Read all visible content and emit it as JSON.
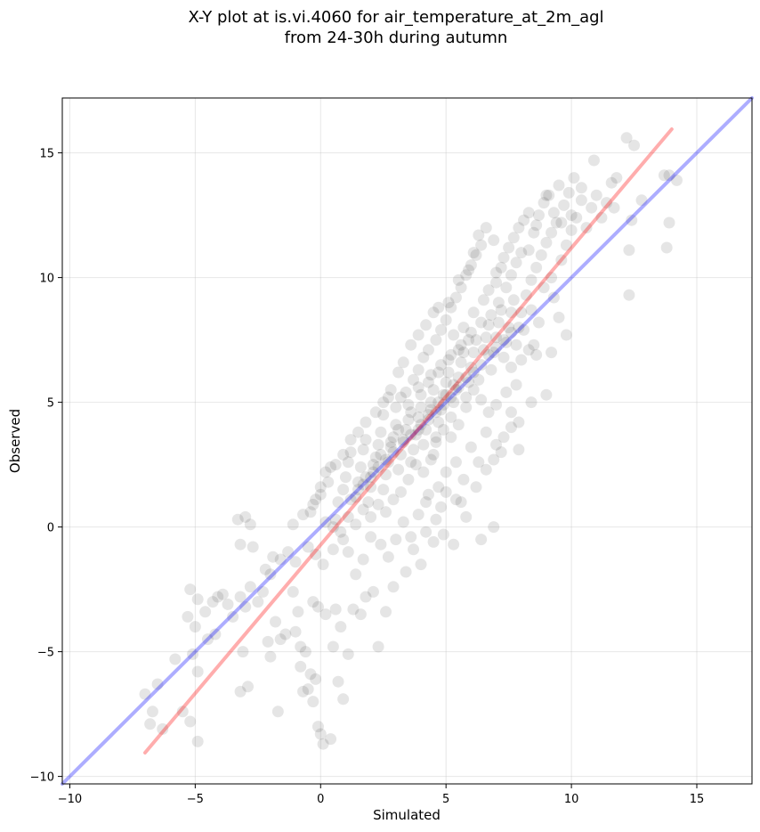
{
  "chart_data": {
    "type": "scatter",
    "title": "X-Y plot at is.vi.4060 for air_temperature_at_2m_agl",
    "subtitle": "from 24-30h during autumn",
    "xlabel": "Simulated",
    "ylabel": "Observed",
    "xlim": [
      -10.3,
      17.2
    ],
    "ylim": [
      -10.3,
      17.2
    ],
    "xticks": [
      -10,
      -5,
      0,
      5,
      10,
      15
    ],
    "yticks": [
      -10,
      -5,
      0,
      5,
      10,
      15
    ],
    "xtick_labels": [
      "−10",
      "−5",
      "0",
      "5",
      "10",
      "15"
    ],
    "ytick_labels": [
      "−10",
      "−5",
      "0",
      "5",
      "10",
      "15"
    ],
    "grid": true,
    "point_color": "#000000",
    "point_opacity": 0.1,
    "lines": [
      {
        "color": "#0000ff",
        "opacity": 0.32,
        "x": [
          -10.3,
          17.2
        ],
        "y": [
          -10.3,
          17.2
        ]
      },
      {
        "color": "#ff0000",
        "opacity": 0.32,
        "x": [
          -7.0,
          14.0
        ],
        "y": [
          -9.05,
          15.95
        ]
      }
    ],
    "points": [
      [
        -7.0,
        -6.7
      ],
      [
        -6.8,
        -7.9
      ],
      [
        -6.5,
        -6.3
      ],
      [
        -6.7,
        -7.4
      ],
      [
        -6.3,
        -8.1
      ],
      [
        -5.5,
        -7.4
      ],
      [
        -5.2,
        -7.8
      ],
      [
        -4.9,
        -8.6
      ],
      [
        -5.8,
        -5.3
      ],
      [
        -5.1,
        -5.1
      ],
      [
        -4.9,
        -5.8
      ],
      [
        -5.0,
        -4.0
      ],
      [
        -4.5,
        -4.5
      ],
      [
        -4.2,
        -4.3
      ],
      [
        -5.3,
        -3.6
      ],
      [
        -4.9,
        -2.9
      ],
      [
        -5.2,
        -2.5
      ],
      [
        -4.6,
        -3.4
      ],
      [
        -4.3,
        -3.0
      ],
      [
        -4.1,
        -2.8
      ],
      [
        -3.9,
        -2.7
      ],
      [
        -3.7,
        -3.1
      ],
      [
        -3.5,
        -3.6
      ],
      [
        -3.2,
        -2.8
      ],
      [
        -3.0,
        -3.2
      ],
      [
        -2.8,
        -2.4
      ],
      [
        -2.5,
        -3.0
      ],
      [
        -2.3,
        -2.6
      ],
      [
        -2.2,
        -1.7
      ],
      [
        -2.0,
        -1.9
      ],
      [
        -1.6,
        -1.3
      ],
      [
        -1.3,
        -1.0
      ],
      [
        -3.2,
        -6.6
      ],
      [
        -2.9,
        -6.4
      ],
      [
        -3.1,
        -5.0
      ],
      [
        -2.1,
        -4.6
      ],
      [
        -2.0,
        -5.2
      ],
      [
        -1.6,
        -4.5
      ],
      [
        -1.4,
        -4.3
      ],
      [
        -1.7,
        -7.4
      ],
      [
        -1.0,
        -4.2
      ],
      [
        -0.8,
        -4.8
      ],
      [
        -0.6,
        -5.0
      ],
      [
        -0.5,
        -6.5
      ],
      [
        -0.7,
        -6.6
      ],
      [
        -0.3,
        -7.0
      ],
      [
        -0.2,
        -6.1
      ],
      [
        -0.1,
        -8.0
      ],
      [
        0.1,
        -8.7
      ],
      [
        0.4,
        -8.5
      ],
      [
        0.0,
        -8.3
      ],
      [
        -0.8,
        -5.6
      ],
      [
        -0.4,
        -5.9
      ],
      [
        -0.9,
        -3.4
      ],
      [
        -1.8,
        -3.8
      ],
      [
        -1.1,
        -2.6
      ],
      [
        -0.3,
        -3.0
      ],
      [
        -0.1,
        -3.2
      ],
      [
        0.2,
        -3.5
      ],
      [
        0.6,
        -3.3
      ],
      [
        0.8,
        -4.0
      ],
      [
        0.5,
        -4.8
      ],
      [
        0.7,
        -6.2
      ],
      [
        0.9,
        -6.9
      ],
      [
        1.1,
        -5.1
      ],
      [
        1.3,
        -3.3
      ],
      [
        1.6,
        -3.5
      ],
      [
        1.8,
        -2.8
      ],
      [
        2.1,
        -2.6
      ],
      [
        2.3,
        -4.8
      ],
      [
        2.6,
        -3.4
      ],
      [
        2.9,
        -2.4
      ],
      [
        -3.3,
        0.3
      ],
      [
        -3.0,
        0.4
      ],
      [
        -2.8,
        0.1
      ],
      [
        -3.2,
        -0.7
      ],
      [
        -2.7,
        -0.8
      ],
      [
        -1.9,
        -1.2
      ],
      [
        -1.1,
        0.1
      ],
      [
        -1.0,
        -1.4
      ],
      [
        -0.5,
        -0.8
      ],
      [
        -0.2,
        -1.1
      ],
      [
        0.1,
        -1.5
      ],
      [
        0.5,
        -0.9
      ],
      [
        0.9,
        -0.5
      ],
      [
        1.1,
        -1.0
      ],
      [
        1.4,
        -1.9
      ],
      [
        1.7,
        -1.3
      ],
      [
        2.0,
        -0.4
      ],
      [
        2.4,
        -0.7
      ],
      [
        2.7,
        -1.2
      ],
      [
        3.0,
        -0.5
      ],
      [
        3.4,
        -1.8
      ],
      [
        3.7,
        -0.9
      ],
      [
        4.0,
        -1.5
      ],
      [
        4.2,
        -0.2
      ],
      [
        4.5,
        -0.6
      ],
      [
        4.9,
        -0.3
      ],
      [
        5.3,
        -0.7
      ],
      [
        6.4,
        -0.5
      ],
      [
        6.9,
        0.0
      ],
      [
        5.8,
        0.4
      ],
      [
        5.4,
        1.1
      ],
      [
        4.8,
        0.8
      ],
      [
        -0.7,
        0.5
      ],
      [
        -0.4,
        0.6
      ],
      [
        -0.2,
        1.1
      ],
      [
        0.0,
        1.6
      ],
      [
        0.2,
        2.2
      ],
      [
        0.4,
        2.4
      ],
      [
        0.2,
        0.2
      ],
      [
        0.6,
        0.3
      ],
      [
        0.7,
        1.0
      ],
      [
        0.9,
        1.5
      ],
      [
        1.0,
        2.0
      ],
      [
        1.1,
        2.6
      ],
      [
        1.2,
        3.0
      ],
      [
        1.4,
        1.2
      ],
      [
        1.5,
        1.8
      ],
      [
        1.6,
        2.4
      ],
      [
        1.7,
        3.1
      ],
      [
        1.8,
        3.5
      ],
      [
        1.9,
        1.0
      ],
      [
        2.0,
        1.6
      ],
      [
        2.1,
        2.2
      ],
      [
        2.2,
        2.8
      ],
      [
        2.3,
        3.3
      ],
      [
        2.4,
        3.8
      ],
      [
        2.5,
        1.5
      ],
      [
        2.6,
        2.1
      ],
      [
        2.7,
        2.6
      ],
      [
        2.8,
        3.2
      ],
      [
        2.9,
        3.6
      ],
      [
        3.0,
        4.1
      ],
      [
        3.1,
        2.3
      ],
      [
        3.2,
        2.9
      ],
      [
        3.3,
        3.4
      ],
      [
        3.4,
        3.9
      ],
      [
        3.5,
        4.3
      ],
      [
        3.6,
        2.6
      ],
      [
        3.7,
        3.1
      ],
      [
        3.8,
        3.7
      ],
      [
        3.9,
        4.4
      ],
      [
        4.0,
        4.8
      ],
      [
        4.1,
        3.3
      ],
      [
        4.2,
        3.9
      ],
      [
        4.3,
        4.5
      ],
      [
        4.4,
        5.0
      ],
      [
        4.5,
        5.5
      ],
      [
        4.6,
        3.6
      ],
      [
        4.7,
        4.2
      ],
      [
        4.8,
        4.7
      ],
      [
        4.9,
        5.3
      ],
      [
        5.0,
        5.8
      ],
      [
        5.1,
        6.2
      ],
      [
        5.2,
        4.4
      ],
      [
        5.3,
        5.0
      ],
      [
        5.4,
        5.5
      ],
      [
        5.5,
        6.0
      ],
      [
        5.6,
        6.6
      ],
      [
        5.7,
        7.0
      ],
      [
        5.8,
        5.2
      ],
      [
        5.9,
        5.8
      ],
      [
        6.0,
        6.4
      ],
      [
        6.1,
        7.0
      ],
      [
        6.2,
        7.5
      ],
      [
        6.3,
        5.9
      ],
      [
        6.4,
        6.5
      ],
      [
        6.5,
        7.1
      ],
      [
        6.6,
        7.6
      ],
      [
        6.7,
        8.1
      ],
      [
        6.8,
        6.3
      ],
      [
        6.9,
        7.0
      ],
      [
        7.0,
        7.6
      ],
      [
        7.1,
        8.2
      ],
      [
        7.2,
        8.7
      ],
      [
        7.3,
        6.8
      ],
      [
        7.4,
        7.4
      ],
      [
        7.5,
        8.0
      ],
      [
        7.6,
        8.6
      ],
      [
        7.7,
        9.1
      ],
      [
        7.8,
        7.3
      ],
      [
        7.9,
        8.0
      ],
      [
        8.0,
        8.6
      ],
      [
        3.0,
        4.8
      ],
      [
        3.4,
        5.4
      ],
      [
        3.7,
        5.9
      ],
      [
        3.9,
        6.3
      ],
      [
        4.1,
        6.8
      ],
      [
        4.3,
        7.1
      ],
      [
        4.6,
        7.5
      ],
      [
        4.8,
        7.9
      ],
      [
        5.0,
        8.3
      ],
      [
        5.2,
        8.8
      ],
      [
        5.4,
        9.2
      ],
      [
        5.6,
        9.6
      ],
      [
        5.8,
        10.1
      ],
      [
        6.0,
        10.5
      ],
      [
        6.2,
        10.9
      ],
      [
        6.4,
        11.3
      ],
      [
        2.5,
        4.5
      ],
      [
        2.7,
        5.2
      ],
      [
        3.1,
        6.2
      ],
      [
        3.3,
        6.6
      ],
      [
        3.6,
        7.3
      ],
      [
        3.9,
        7.7
      ],
      [
        4.2,
        8.1
      ],
      [
        4.5,
        8.6
      ],
      [
        4.7,
        8.8
      ],
      [
        5.1,
        9.0
      ],
      [
        5.5,
        9.9
      ],
      [
        5.9,
        10.3
      ],
      [
        6.1,
        11.0
      ],
      [
        6.3,
        11.7
      ],
      [
        6.6,
        12.0
      ],
      [
        6.9,
        11.5
      ],
      [
        7.0,
        10.2
      ],
      [
        7.3,
        10.8
      ],
      [
        7.5,
        11.2
      ],
      [
        7.7,
        11.6
      ],
      [
        7.9,
        12.0
      ],
      [
        8.1,
        12.3
      ],
      [
        8.3,
        11.1
      ],
      [
        8.5,
        11.8
      ],
      [
        8.7,
        12.5
      ],
      [
        8.9,
        13.0
      ],
      [
        9.1,
        13.3
      ],
      [
        9.3,
        12.6
      ],
      [
        9.5,
        13.7
      ],
      [
        9.7,
        12.9
      ],
      [
        9.9,
        13.4
      ],
      [
        10.1,
        14.0
      ],
      [
        6.7,
        9.5
      ],
      [
        7.0,
        9.8
      ],
      [
        7.2,
        10.4
      ],
      [
        7.4,
        9.6
      ],
      [
        7.6,
        10.1
      ],
      [
        7.8,
        10.6
      ],
      [
        8.0,
        11.0
      ],
      [
        8.2,
        9.3
      ],
      [
        8.4,
        9.9
      ],
      [
        8.6,
        10.4
      ],
      [
        8.8,
        10.9
      ],
      [
        9.0,
        11.4
      ],
      [
        9.2,
        11.8
      ],
      [
        9.4,
        12.2
      ],
      [
        9.6,
        10.7
      ],
      [
        9.8,
        11.3
      ],
      [
        10.0,
        11.9
      ],
      [
        10.2,
        12.4
      ],
      [
        10.4,
        13.1
      ],
      [
        10.6,
        12.0
      ],
      [
        10.8,
        12.8
      ],
      [
        11.0,
        13.3
      ],
      [
        11.2,
        12.4
      ],
      [
        11.4,
        13.0
      ],
      [
        11.6,
        13.8
      ],
      [
        11.8,
        14.0
      ],
      [
        12.2,
        15.6
      ],
      [
        12.5,
        15.3
      ],
      [
        12.3,
        11.1
      ],
      [
        12.3,
        9.3
      ],
      [
        12.8,
        13.1
      ],
      [
        12.4,
        12.3
      ],
      [
        13.7,
        14.1
      ],
      [
        13.9,
        14.1
      ],
      [
        14.2,
        13.9
      ],
      [
        13.8,
        11.2
      ],
      [
        13.9,
        12.2
      ],
      [
        10.9,
        14.7
      ],
      [
        10.4,
        13.6
      ],
      [
        11.7,
        12.8
      ],
      [
        8.3,
        12.6
      ],
      [
        8.6,
        12.1
      ],
      [
        9.0,
        13.3
      ],
      [
        9.6,
        12.2
      ],
      [
        10.0,
        12.5
      ],
      [
        9.2,
        10.0
      ],
      [
        9.5,
        8.4
      ],
      [
        9.3,
        9.2
      ],
      [
        8.9,
        9.6
      ],
      [
        8.7,
        8.2
      ],
      [
        8.4,
        8.7
      ],
      [
        8.1,
        7.9
      ],
      [
        8.5,
        7.3
      ],
      [
        9.2,
        7.0
      ],
      [
        9.8,
        7.7
      ],
      [
        9.0,
        5.3
      ],
      [
        8.4,
        5.0
      ],
      [
        7.9,
        4.2
      ],
      [
        7.6,
        4.6
      ],
      [
        7.3,
        3.6
      ],
      [
        7.9,
        3.1
      ],
      [
        7.6,
        4.0
      ],
      [
        7.0,
        3.3
      ],
      [
        6.6,
        3.8
      ],
      [
        6.3,
        2.6
      ],
      [
        6.0,
        3.2
      ],
      [
        5.7,
        1.9
      ],
      [
        5.4,
        2.6
      ],
      [
        5.0,
        2.2
      ],
      [
        4.7,
        1.6
      ],
      [
        4.5,
        2.9
      ],
      [
        4.3,
        1.3
      ],
      [
        7.6,
        6.4
      ],
      [
        8.0,
        6.7
      ],
      [
        8.3,
        7.1
      ],
      [
        8.6,
        6.9
      ],
      [
        7.8,
        5.7
      ],
      [
        7.4,
        5.4
      ],
      [
        7.0,
        4.9
      ],
      [
        6.7,
        4.6
      ],
      [
        6.4,
        5.1
      ],
      [
        6.1,
        5.5
      ],
      [
        5.8,
        4.8
      ],
      [
        5.5,
        4.1
      ],
      [
        5.2,
        3.6
      ],
      [
        4.9,
        3.9
      ],
      [
        4.6,
        3.4
      ],
      [
        4.4,
        2.7
      ],
      [
        4.1,
        2.2
      ],
      [
        3.8,
        2.5
      ],
      [
        3.5,
        1.9
      ],
      [
        3.2,
        1.4
      ],
      [
        2.9,
        1.1
      ],
      [
        2.6,
        0.6
      ],
      [
        2.3,
        0.9
      ],
      [
        2.0,
        0.4
      ],
      [
        1.7,
        0.7
      ],
      [
        1.4,
        0.1
      ],
      [
        1.1,
        0.4
      ],
      [
        0.8,
        -0.2
      ],
      [
        0.5,
        0.0
      ],
      [
        3.3,
        0.2
      ],
      [
        3.6,
        -0.4
      ],
      [
        3.9,
        0.5
      ],
      [
        4.2,
        1.0
      ],
      [
        4.6,
        0.3
      ],
      [
        5.0,
        1.4
      ],
      [
        5.6,
        1.0
      ],
      [
        6.2,
        1.6
      ],
      [
        6.6,
        2.3
      ],
      [
        6.9,
        2.7
      ],
      [
        7.2,
        3.0
      ],
      [
        1.5,
        3.8
      ],
      [
        1.8,
        4.2
      ],
      [
        2.2,
        4.6
      ],
      [
        2.5,
        5.0
      ],
      [
        2.8,
        5.5
      ],
      [
        1.2,
        3.5
      ],
      [
        0.9,
        2.9
      ],
      [
        0.6,
        2.5
      ],
      [
        0.3,
        1.8
      ],
      [
        0.0,
        1.3
      ],
      [
        -0.3,
        0.9
      ],
      [
        3.2,
        5.2
      ],
      [
        3.5,
        4.9
      ],
      [
        3.9,
        5.6
      ],
      [
        4.4,
        6.1
      ],
      [
        4.8,
        6.5
      ],
      [
        5.2,
        6.9
      ],
      [
        5.6,
        7.3
      ],
      [
        6.0,
        7.8
      ],
      [
        6.4,
        8.2
      ],
      [
        6.8,
        8.5
      ],
      [
        7.1,
        9.0
      ],
      [
        5.3,
        7.7
      ],
      [
        5.7,
        8.0
      ],
      [
        6.1,
        8.6
      ],
      [
        6.5,
        9.1
      ],
      [
        4.0,
        5.3
      ],
      [
        4.3,
        5.8
      ],
      [
        4.7,
        6.2
      ],
      [
        5.1,
        6.7
      ],
      [
        5.5,
        7.1
      ],
      [
        5.9,
        7.5
      ],
      [
        3.6,
        4.6
      ],
      [
        3.1,
        3.9
      ],
      [
        2.8,
        3.4
      ],
      [
        2.4,
        2.9
      ],
      [
        2.1,
        2.5
      ],
      [
        1.8,
        2.0
      ],
      [
        1.5,
        1.5
      ],
      [
        1.2,
        1.1
      ],
      [
        4.0,
        4.1
      ],
      [
        4.3,
        4.3
      ],
      [
        4.6,
        4.6
      ],
      [
        4.9,
        4.9
      ],
      [
        5.2,
        5.2
      ],
      [
        5.5,
        5.6
      ],
      [
        5.8,
        6.0
      ],
      [
        6.1,
        6.2
      ],
      [
        3.3,
        3.5
      ],
      [
        3.6,
        3.7
      ],
      [
        3.9,
        3.9
      ],
      [
        2.9,
        3.0
      ],
      [
        2.6,
        2.7
      ],
      [
        2.3,
        2.4
      ],
      [
        2.0,
        2.0
      ],
      [
        1.7,
        1.7
      ],
      [
        6.7,
        6.9
      ],
      [
        7.0,
        7.2
      ],
      [
        7.3,
        7.5
      ],
      [
        7.6,
        7.8
      ],
      [
        4.4,
        4.7
      ],
      [
        4.7,
        5.0
      ],
      [
        5.0,
        5.3
      ],
      [
        5.3,
        5.7
      ]
    ]
  }
}
